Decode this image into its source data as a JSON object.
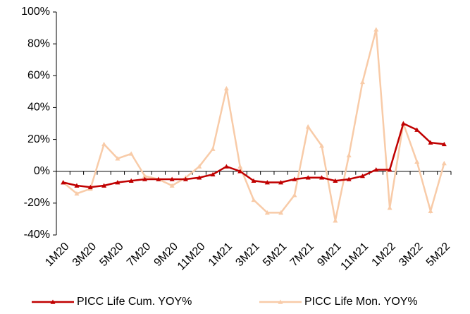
{
  "chart_data": {
    "type": "line",
    "categories": [
      "1M20",
      null,
      "3M20",
      null,
      "5M20",
      null,
      "7M20",
      null,
      "9M20",
      null,
      "11M20",
      null,
      "1M21",
      null,
      "3M21",
      null,
      "5M21",
      null,
      "7M21",
      null,
      "9M21",
      null,
      "11M21",
      null,
      "1M22",
      null,
      "3M22",
      null,
      "5M22"
    ],
    "series": [
      {
        "name": "PICC Life Cum. YOY%",
        "color": "#c00000",
        "values": [
          -7,
          -9,
          -10,
          -9,
          -7,
          -6,
          -5,
          -5,
          -5,
          -5,
          -4,
          -2,
          3,
          0,
          -6,
          -7,
          -7,
          -5,
          -4,
          -4,
          -6,
          -5,
          -3,
          1,
          1,
          30,
          26,
          18,
          17
        ]
      },
      {
        "name": "PICC Life Mon. YOY%",
        "color": "#f8cba8",
        "values": [
          -7,
          -14,
          -11,
          17,
          8,
          11,
          -3,
          -5,
          -9,
          -4,
          3,
          14,
          52,
          3,
          -18,
          -26,
          -26,
          -15,
          28,
          16,
          -31,
          10,
          56,
          89,
          -23,
          30,
          6,
          -25,
          5
        ]
      }
    ],
    "ylim": [
      -40,
      100
    ],
    "yticks": [
      {
        "value": -40,
        "label": "-40%"
      },
      {
        "value": -20,
        "label": "-20%"
      },
      {
        "value": 0,
        "label": "0%"
      },
      {
        "value": 20,
        "label": "20%"
      },
      {
        "value": 40,
        "label": "40%"
      },
      {
        "value": 60,
        "label": "60%"
      },
      {
        "value": 80,
        "label": "80%"
      },
      {
        "value": 100,
        "label": "100%"
      }
    ],
    "grid": false,
    "legend": "bottom"
  }
}
